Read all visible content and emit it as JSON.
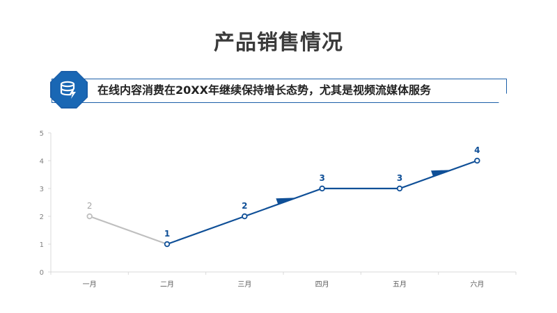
{
  "header": {
    "title": "产品销售情况",
    "subtitle": "在线内容消费在20XX年继续保持增长态势，尤其是视频流媒体服务"
  },
  "icons": {
    "badge": "database-lightning-icon"
  },
  "colors": {
    "accent": "#1a5ea8",
    "accent_dark": "#0f4f97",
    "gray_series": "#bfbfbf",
    "axis": "#d9d9d9"
  },
  "chart_data": {
    "type": "line",
    "categories": [
      "一月",
      "二月",
      "三月",
      "四月",
      "五月",
      "六月"
    ],
    "values": [
      2,
      1,
      2,
      3,
      3,
      4
    ],
    "highlight_from_index": 1,
    "ylim": [
      0,
      5
    ],
    "yticks": [
      0,
      1,
      2,
      3,
      4,
      5
    ],
    "grid": false,
    "legend": "none"
  }
}
